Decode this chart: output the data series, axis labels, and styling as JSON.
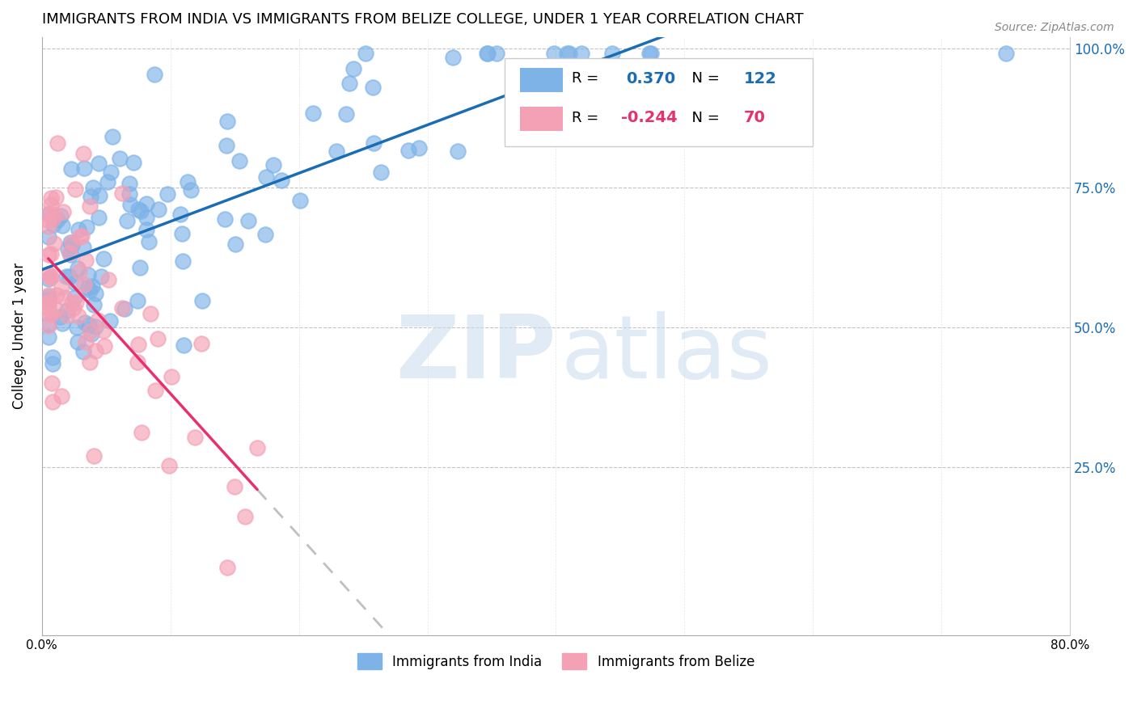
{
  "title": "IMMIGRANTS FROM INDIA VS IMMIGRANTS FROM BELIZE COLLEGE, UNDER 1 YEAR CORRELATION CHART",
  "source": "Source: ZipAtlas.com",
  "ylabel": "College, Under 1 year",
  "x_min": 0.0,
  "x_max": 0.8,
  "y_min": 0.0,
  "y_max": 1.0,
  "india_color": "#7EB3E8",
  "belize_color": "#F4A0B5",
  "india_line_color": "#1A6DB5",
  "belize_line_color": "#E83070",
  "belize_line_dashed_color": "#C0C0C0",
  "r_india": 0.37,
  "n_india": 122,
  "r_belize": -0.244,
  "n_belize": 70
}
